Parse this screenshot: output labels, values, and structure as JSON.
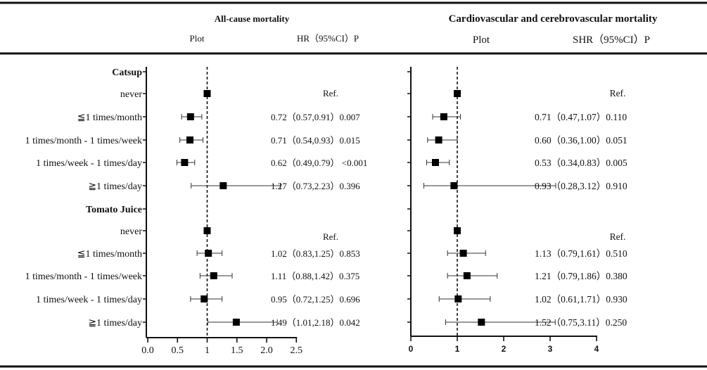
{
  "chart_data": [
    {
      "type": "forest",
      "title": "All-cause mortality",
      "plot_header": "Plot",
      "stat_header": "HR（95%CI）P",
      "xlim": [
        0,
        2.5
      ],
      "xticks": [
        "0.0",
        "0.5",
        "1",
        "1.5",
        "2.0",
        "2.5"
      ],
      "xtick_values": [
        0,
        0.5,
        1,
        1.5,
        2.0,
        2.5
      ],
      "reference_line": 1,
      "rows": [
        {
          "label": "Catsup",
          "group": true
        },
        {
          "label": "never",
          "hr": 1,
          "ref": true,
          "text": "Ref."
        },
        {
          "label": "≦1 times/month",
          "hr": 0.72,
          "lo": 0.57,
          "hi": 0.91,
          "text": "0.72（0.57,0.91）0.007"
        },
        {
          "label": "1 times/month - 1 times/week",
          "hr": 0.71,
          "lo": 0.54,
          "hi": 0.93,
          "text": "0.71（0.54,0.93）0.015"
        },
        {
          "label": "1 times/week - 1 times/day",
          "hr": 0.62,
          "lo": 0.49,
          "hi": 0.79,
          "text": "0.62（0.49,0.79） <0.001"
        },
        {
          "label": "≧1 times/day",
          "hr": 1.27,
          "lo": 0.73,
          "hi": 2.23,
          "text": "1.27（0.73,2.23）0.396"
        },
        {
          "label": "Tomato Juice",
          "group": true
        },
        {
          "label": "never",
          "hr": 1,
          "ref": true,
          "text": "Ref."
        },
        {
          "label": "≦1 times/month",
          "hr": 1.02,
          "lo": 0.83,
          "hi": 1.25,
          "text": "1.02（0.83,1.25）0.853"
        },
        {
          "label": "1 times/month - 1 times/week",
          "hr": 1.11,
          "lo": 0.88,
          "hi": 1.42,
          "text": "1.11（0.88,1.42）0.375"
        },
        {
          "label": "1 times/week - 1 times/day",
          "hr": 0.95,
          "lo": 0.72,
          "hi": 1.25,
          "text": "0.95（0.72,1.25）0.696"
        },
        {
          "label": "≧1 times/day",
          "hr": 1.49,
          "lo": 1.01,
          "hi": 2.18,
          "text": "1.49（1.01,2.18）0.042"
        }
      ]
    },
    {
      "type": "forest",
      "title": "Cardiovascular and cerebrovascular mortality",
      "plot_header": "Plot",
      "stat_header": "SHR（95%CI）P",
      "xlim": [
        0,
        4
      ],
      "xticks": [
        "0",
        "1",
        "2",
        "3",
        "4"
      ],
      "xtick_values": [
        0,
        1,
        2,
        3,
        4
      ],
      "reference_line": 1,
      "rows": [
        {
          "group": true
        },
        {
          "hr": 1,
          "ref": true,
          "text": "Ref."
        },
        {
          "hr": 0.71,
          "lo": 0.47,
          "hi": 1.07,
          "text": "0.71（0.47,1.07）0.110"
        },
        {
          "hr": 0.6,
          "lo": 0.36,
          "hi": 1.0,
          "text": "0.60（0.36,1.00）0.051"
        },
        {
          "hr": 0.53,
          "lo": 0.34,
          "hi": 0.83,
          "text": "0.53（0.34,0.83）0.005"
        },
        {
          "hr": 0.93,
          "lo": 0.28,
          "hi": 3.12,
          "text": "0.93（0.28,3.12）0.910"
        },
        {
          "group": true
        },
        {
          "hr": 1,
          "ref": true,
          "text": "Ref."
        },
        {
          "hr": 1.13,
          "lo": 0.79,
          "hi": 1.61,
          "text": "1.13（0.79,1.61）0.510"
        },
        {
          "hr": 1.21,
          "lo": 0.79,
          "hi": 1.86,
          "text": "1.21（0.79,1.86）0.380"
        },
        {
          "hr": 1.02,
          "lo": 0.61,
          "hi": 1.71,
          "text": "1.02（0.61,1.71）0.930"
        },
        {
          "hr": 1.52,
          "lo": 0.75,
          "hi": 3.11,
          "text": "1.52（0.75,3.11）0.250"
        }
      ]
    }
  ]
}
